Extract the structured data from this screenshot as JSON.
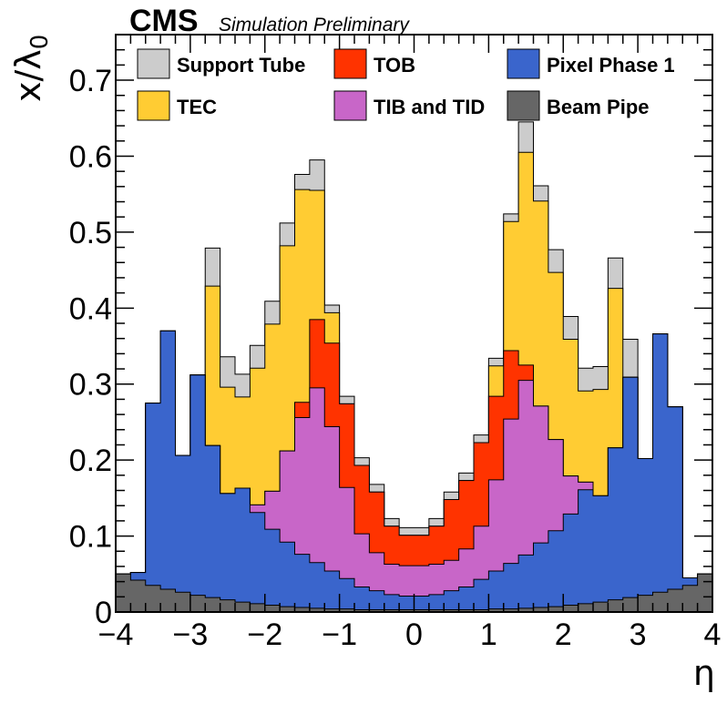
{
  "header": {
    "experiment": "CMS",
    "status": "Simulation Preliminary"
  },
  "chart_data": {
    "type": "area",
    "stacked": true,
    "xlabel": "η",
    "ylabel": "x/λ",
    "ylabel_subscript": "0",
    "xlim": [
      -4,
      4
    ],
    "ylim": [
      0,
      0.76
    ],
    "x_ticks": [
      -4,
      -3,
      -2,
      -1,
      0,
      1,
      2,
      3,
      4
    ],
    "x_tick_labels": [
      "−4",
      "−3",
      "−2",
      "−1",
      "0",
      "1",
      "2",
      "3",
      "4"
    ],
    "y_ticks": [
      0,
      0.1,
      0.2,
      0.3,
      0.4,
      0.5,
      0.6,
      0.7
    ],
    "y_tick_labels": [
      "0",
      "0.1",
      "0.2",
      "0.3",
      "0.4",
      "0.5",
      "0.6",
      "0.7"
    ],
    "legend_placement": "top",
    "bin_edges": [
      -4.0,
      -3.8,
      -3.6,
      -3.4,
      -3.2,
      -3.0,
      -2.8,
      -2.6,
      -2.4,
      -2.2,
      -2.0,
      -1.8,
      -1.6,
      -1.4,
      -1.2,
      -1.0,
      -0.8,
      -0.6,
      -0.4,
      -0.2,
      0.0,
      0.2,
      0.4,
      0.6,
      0.8,
      1.0,
      1.2,
      1.4,
      1.6,
      1.8,
      2.0,
      2.2,
      2.4,
      2.6,
      2.8,
      3.0,
      3.2,
      3.4,
      3.6,
      3.8,
      4.0
    ],
    "series": [
      {
        "name": "Beam Pipe",
        "color": "#666666",
        "values": [
          0.05,
          0.042,
          0.035,
          0.03,
          0.026,
          0.022,
          0.019,
          0.016,
          0.013,
          0.011,
          0.009,
          0.007,
          0.006,
          0.005,
          0.004,
          0.004,
          0.003,
          0.003,
          0.003,
          0.003,
          0.003,
          0.003,
          0.003,
          0.003,
          0.003,
          0.004,
          0.004,
          0.005,
          0.006,
          0.007,
          0.009,
          0.011,
          0.013,
          0.016,
          0.019,
          0.022,
          0.026,
          0.03,
          0.035,
          0.05
        ]
      },
      {
        "name": "Pixel Phase 1",
        "color": "#3a65cc",
        "values": [
          0.0,
          0.01,
          0.24,
          0.34,
          0.18,
          0.29,
          0.2,
          0.14,
          0.15,
          0.12,
          0.1,
          0.085,
          0.07,
          0.06,
          0.05,
          0.04,
          0.03,
          0.025,
          0.02,
          0.018,
          0.018,
          0.02,
          0.025,
          0.03,
          0.04,
          0.05,
          0.06,
          0.07,
          0.085,
          0.1,
          0.12,
          0.15,
          0.14,
          0.2,
          0.29,
          0.18,
          0.34,
          0.24,
          0.01,
          0.0
        ]
      },
      {
        "name": "TIB and TID",
        "color": "#c866c8",
        "values": [
          0.0,
          0.0,
          0.0,
          0.0,
          0.0,
          0.0,
          0.0,
          0.0,
          0.0,
          0.01,
          0.05,
          0.12,
          0.18,
          0.23,
          0.19,
          0.12,
          0.07,
          0.05,
          0.04,
          0.04,
          0.04,
          0.04,
          0.04,
          0.05,
          0.07,
          0.12,
          0.19,
          0.23,
          0.18,
          0.12,
          0.05,
          0.01,
          0.0,
          0.0,
          0.0,
          0.0,
          0.0,
          0.0,
          0.0,
          0.0
        ]
      },
      {
        "name": "TOB",
        "color": "#ff3300",
        "values": [
          0.0,
          0.0,
          0.0,
          0.0,
          0.0,
          0.0,
          0.0,
          0.0,
          0.0,
          0.0,
          0.0,
          0.0,
          0.02,
          0.09,
          0.11,
          0.11,
          0.09,
          0.08,
          0.05,
          0.04,
          0.04,
          0.05,
          0.08,
          0.09,
          0.11,
          0.11,
          0.09,
          0.02,
          0.0,
          0.0,
          0.0,
          0.0,
          0.0,
          0.0,
          0.0,
          0.0,
          0.0,
          0.0,
          0.0,
          0.0
        ]
      },
      {
        "name": "TEC",
        "color": "#ffcc33",
        "values": [
          0.0,
          0.0,
          0.0,
          0.0,
          0.0,
          0.0,
          0.21,
          0.14,
          0.12,
          0.18,
          0.22,
          0.27,
          0.28,
          0.17,
          0.04,
          0.0,
          0.0,
          0.0,
          0.0,
          0.0,
          0.0,
          0.0,
          0.0,
          0.0,
          0.0,
          0.04,
          0.17,
          0.28,
          0.27,
          0.22,
          0.18,
          0.12,
          0.14,
          0.21,
          0.0,
          0.0,
          0.0,
          0.0,
          0.0,
          0.0
        ]
      },
      {
        "name": "Support Tube",
        "color": "#cccccc",
        "values": [
          0.0,
          0.0,
          0.0,
          0.0,
          0.0,
          0.0,
          0.05,
          0.04,
          0.03,
          0.03,
          0.03,
          0.03,
          0.02,
          0.04,
          0.01,
          0.01,
          0.01,
          0.01,
          0.01,
          0.01,
          0.01,
          0.01,
          0.01,
          0.01,
          0.01,
          0.01,
          0.01,
          0.04,
          0.02,
          0.03,
          0.03,
          0.03,
          0.03,
          0.04,
          0.05,
          0.0,
          0.0,
          0.0,
          0.0,
          0.0
        ]
      }
    ],
    "legend": [
      {
        "label": "Support Tube",
        "color": "#cccccc"
      },
      {
        "label": "TOB",
        "color": "#ff3300"
      },
      {
        "label": "Pixel Phase 1",
        "color": "#3a65cc"
      },
      {
        "label": "TEC",
        "color": "#ffcc33"
      },
      {
        "label": "TIB and TID",
        "color": "#c866c8"
      },
      {
        "label": "Beam Pipe",
        "color": "#666666"
      }
    ]
  }
}
